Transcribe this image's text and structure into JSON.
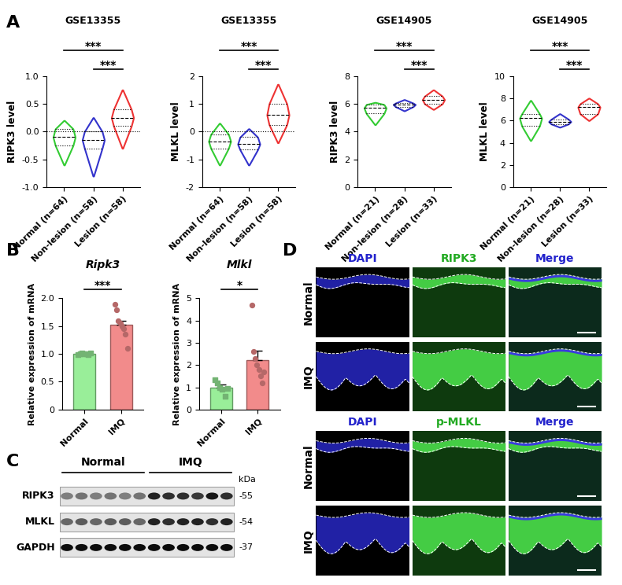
{
  "panel_labels": [
    "A",
    "B",
    "C",
    "D"
  ],
  "chart_data": [
    {
      "type": "violin",
      "title": "GSE13355",
      "y_label": "RIPK3 level",
      "categories": [
        "Normal (n=64)",
        "Non-lesion (n=58)",
        "Lesion (n=58)"
      ],
      "colors": [
        "#33cc33",
        "#3333cc",
        "#ee3333"
      ],
      "min": [
        -0.6,
        -0.8,
        -0.3
      ],
      "q1": [
        -0.25,
        -0.3,
        0.1
      ],
      "median": [
        -0.1,
        -0.15,
        0.25
      ],
      "q3": [
        0.05,
        0.0,
        0.4
      ],
      "max": [
        0.2,
        0.25,
        0.75
      ],
      "ylim": [
        -1,
        1
      ],
      "yticks": [
        {
          "value": -1,
          "label": "-1.0"
        },
        -0.5,
        {
          "value": 0,
          "label": "0.0"
        },
        0.5,
        {
          "value": 1,
          "label": "1.0"
        }
      ],
      "comparisons": [
        {
          "between": [
            "Normal (n=64)",
            "Lesion (n=58)"
          ],
          "label": "***"
        },
        {
          "between": [
            "Non-lesion (n=58)",
            "Lesion (n=58)"
          ],
          "label": "***"
        }
      ]
    },
    {
      "type": "violin",
      "title": "GSE13355",
      "y_label": "MLKL level",
      "categories": [
        "Normal (n=64)",
        "Non-lesion (n=58)",
        "Lesion (n=58)"
      ],
      "colors": [
        "#33cc33",
        "#3333cc",
        "#ee3333"
      ],
      "min": [
        -1.2,
        -1.2,
        -0.4
      ],
      "q1": [
        -0.6,
        -0.65,
        0.25
      ],
      "median": [
        -0.35,
        -0.45,
        0.6
      ],
      "q3": [
        -0.1,
        -0.2,
        1.0
      ],
      "max": [
        0.3,
        0.1,
        1.7
      ],
      "ylim": [
        -2,
        2
      ],
      "yticks": [
        -2,
        -1,
        0,
        1,
        2
      ],
      "comparisons": [
        {
          "between": [
            "Normal (n=64)",
            "Lesion (n=58)"
          ],
          "label": "***"
        },
        {
          "between": [
            "Non-lesion (n=58)",
            "Lesion (n=58)"
          ],
          "label": "***"
        }
      ]
    },
    {
      "type": "violin",
      "title": "GSE14905",
      "y_label": "RIPK3 level",
      "categories": [
        "Normal (n=21)",
        "Non-lesion (n=28)",
        "Lesion (n=33)"
      ],
      "colors": [
        "#33cc33",
        "#3333cc",
        "#ee3333"
      ],
      "min": [
        4.5,
        5.5,
        5.6
      ],
      "q1": [
        5.3,
        5.8,
        6.0
      ],
      "median": [
        5.7,
        5.95,
        6.3
      ],
      "q3": [
        5.95,
        6.05,
        6.55
      ],
      "max": [
        6.1,
        6.3,
        7.0
      ],
      "ylim": [
        0,
        8
      ],
      "yticks": [
        0,
        2,
        4,
        6,
        8
      ],
      "comparisons": [
        {
          "between": [
            "Normal (n=21)",
            "Lesion (n=33)"
          ],
          "label": "***"
        },
        {
          "between": [
            "Non-lesion (n=28)",
            "Lesion (n=33)"
          ],
          "label": "***"
        }
      ]
    },
    {
      "type": "violin",
      "title": "GSE14905",
      "y_label": "MLKL level",
      "categories": [
        "Normal (n=21)",
        "Non-lesion (n=28)",
        "Lesion (n=33)"
      ],
      "colors": [
        "#33cc33",
        "#3333cc",
        "#ee3333"
      ],
      "min": [
        4.2,
        5.4,
        6.0
      ],
      "q1": [
        5.5,
        5.7,
        6.6
      ],
      "median": [
        6.2,
        5.9,
        7.2
      ],
      "q3": [
        6.6,
        6.1,
        7.5
      ],
      "max": [
        7.8,
        6.6,
        8.0
      ],
      "ylim": [
        0,
        10
      ],
      "yticks": [
        0,
        2,
        4,
        6,
        8,
        10
      ],
      "comparisons": [
        {
          "between": [
            "Normal (n=21)",
            "Lesion (n=33)"
          ],
          "label": "***"
        },
        {
          "between": [
            "Non-lesion (n=28)",
            "Lesion (n=33)"
          ],
          "label": "***"
        }
      ]
    },
    {
      "type": "bar",
      "title": "Ripk3",
      "y_label": "Relative expression of mRNA",
      "categories": [
        "Normal",
        "IMQ"
      ],
      "values": [
        1.0,
        1.53
      ],
      "errors": [
        0.01,
        0.07
      ],
      "points": [
        [
          0.99,
          1.0,
          1.01,
          1.0,
          1.0,
          0.99,
          1.01
        ],
        [
          1.9,
          1.8,
          1.6,
          1.55,
          1.5,
          1.45,
          1.35,
          1.1
        ]
      ],
      "colors": [
        "#99ee99",
        "#f28b8b"
      ],
      "ylim": [
        0,
        2
      ],
      "yticks": [
        0,
        0.5,
        {
          "value": 1,
          "label": "1.0"
        },
        1.5,
        {
          "value": 2,
          "label": "2.0"
        }
      ],
      "comparisons": [
        {
          "between": [
            "Normal",
            "IMQ"
          ],
          "label": "***"
        }
      ]
    },
    {
      "type": "bar",
      "title": "Mlkl",
      "y_label": "Relative expression of mRNA",
      "categories": [
        "Normal",
        "IMQ"
      ],
      "values": [
        1.0,
        2.22
      ],
      "errors": [
        0.12,
        0.42
      ],
      "points": [
        [
          1.35,
          1.2,
          1.0,
          0.9,
          0.6,
          0.95
        ],
        [
          4.7,
          2.6,
          2.3,
          2.0,
          1.8,
          1.5,
          1.2,
          1.7
        ]
      ],
      "colors": [
        "#99ee99",
        "#f28b8b"
      ],
      "ylim": [
        0,
        5
      ],
      "yticks": [
        0,
        1,
        2,
        3,
        4,
        5
      ],
      "comparisons": [
        {
          "between": [
            "Normal",
            "IMQ"
          ],
          "label": "*"
        }
      ]
    }
  ],
  "blot": {
    "unit": "kDa",
    "lane_groups": [
      {
        "label": "Normal",
        "lanes": 6
      },
      {
        "label": "IMQ",
        "lanes": 6
      }
    ],
    "rows": [
      {
        "label": "RIPK3",
        "size": "-55",
        "intensity": [
          0.45,
          0.5,
          0.45,
          0.5,
          0.45,
          0.5,
          0.85,
          0.8,
          0.8,
          0.75,
          0.9,
          0.8
        ]
      },
      {
        "label": "MLKL",
        "size": "-54",
        "intensity": [
          0.55,
          0.6,
          0.55,
          0.6,
          0.6,
          0.55,
          0.85,
          0.8,
          0.85,
          0.85,
          0.8,
          0.85
        ]
      },
      {
        "label": "GAPDH",
        "size": "-37",
        "intensity": [
          0.95,
          0.95,
          0.95,
          0.95,
          0.95,
          0.95,
          0.95,
          0.95,
          0.95,
          0.95,
          0.95,
          0.95
        ]
      }
    ]
  },
  "images": {
    "blocks": [
      {
        "columns": [
          "DAPI",
          "RIPK3",
          "Merge"
        ],
        "colors": [
          "#2222cc",
          "#22aa22",
          "#2222cc"
        ],
        "rows": [
          "Normal",
          "IMQ"
        ]
      },
      {
        "columns": [
          "DAPI",
          "p-MLKL",
          "Merge"
        ],
        "colors": [
          "#2222cc",
          "#22aa22",
          "#2222cc"
        ],
        "rows": [
          "Normal",
          "IMQ"
        ]
      }
    ]
  }
}
